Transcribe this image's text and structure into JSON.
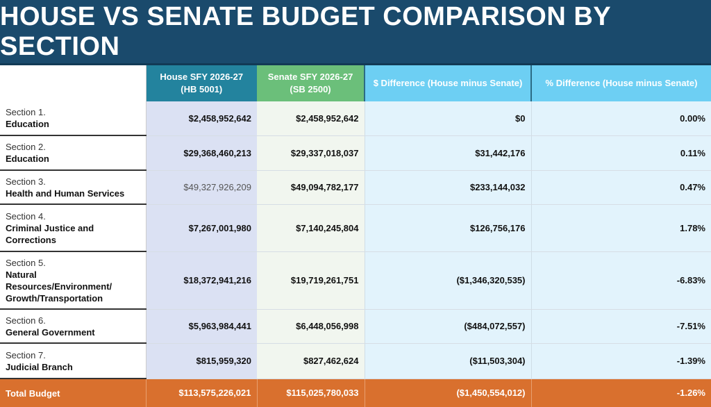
{
  "title": "HOUSE VS SENATE BUDGET COMPARISON BY SECTION",
  "headers": {
    "house": [
      "House SFY 2026-27",
      "(HB 5001)"
    ],
    "senate": [
      "Senate SFY 2026-27",
      "(SB 2500)"
    ],
    "diff": "$ Difference (House minus Senate)",
    "pct": "% Difference (House minus Senate)"
  },
  "rows": [
    {
      "section": "Section 1.",
      "name": "Education",
      "house": "$2,458,952,642",
      "senate": "$2,458,952,642",
      "diff": "$0",
      "pct": "0.00%"
    },
    {
      "section": "Section 2.",
      "name": "Education",
      "house": "$29,368,460,213",
      "senate": "$29,337,018,037",
      "diff": "$31,442,176",
      "pct": "0.11%"
    },
    {
      "section": "Section 3.",
      "name": "Health and Human Services",
      "house": "$49,327,926,209",
      "senate": "$49,094,782,177",
      "diff": "$233,144,032",
      "pct": "0.47%"
    },
    {
      "section": "Section 4.",
      "name": "Criminal Justice and Corrections",
      "house": "$7,267,001,980",
      "senate": "$7,140,245,804",
      "diff": "$126,756,176",
      "pct": "1.78%"
    },
    {
      "section": "Section 5.",
      "name": "Natural Resources/Environment/ Growth/Transportation",
      "house": "$18,372,941,216",
      "senate": "$19,719,261,751",
      "diff": "($1,346,320,535)",
      "pct": "-6.83%"
    },
    {
      "section": "Section 6.",
      "name": "General Government",
      "house": "$5,963,984,441",
      "senate": "$6,448,056,998",
      "diff": "($484,072,557)",
      "pct": "-7.51%"
    },
    {
      "section": "Section 7.",
      "name": "Judicial Branch",
      "house": "$815,959,320",
      "senate": "$827,462,624",
      "diff": "($11,503,304)",
      "pct": "-1.39%"
    }
  ],
  "total": {
    "label": "Total Budget",
    "house": "$113,575,226,021",
    "senate": "$115,025,780,033",
    "diff": "($1,450,554,012)",
    "pct": "-1.26%"
  },
  "colors": {
    "title": "#1a4a6c",
    "house": "#23839e",
    "senate": "#6bbf7a",
    "diff": "#6dcff3",
    "total": "#d9702e"
  }
}
